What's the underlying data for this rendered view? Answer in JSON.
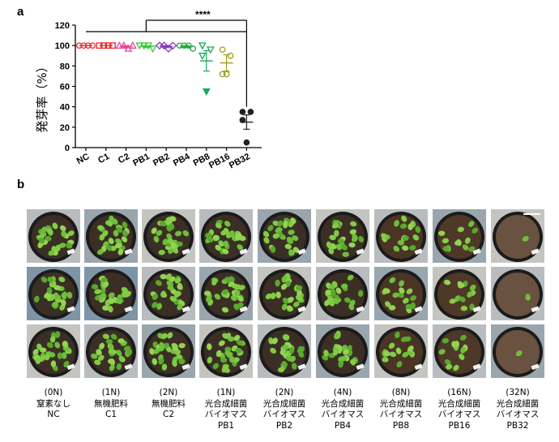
{
  "panel_a_label": "a",
  "panel_b_label": "b",
  "chart_data": {
    "type": "scatter",
    "ylabel": "発芽率（%）",
    "ylim": [
      0,
      120
    ],
    "yticks": [
      0,
      20,
      40,
      60,
      80,
      100,
      120
    ],
    "categories": [
      "NC",
      "C1",
      "C2",
      "PB1",
      "PB2",
      "PB4",
      "PB8",
      "PB16",
      "PB32"
    ],
    "colors": [
      "#e8272a",
      "#e8272a",
      "#e6449a",
      "#3cc83c",
      "#8a3ab5",
      "#23a23c",
      "#1aa85b",
      "#a09a1c",
      "#222222"
    ],
    "markers": [
      "circle",
      "square",
      "triangle",
      "triangle-down",
      "diamond",
      "circle",
      "triangle-down",
      "circle",
      "circle"
    ],
    "points": [
      [
        100,
        100,
        100,
        100
      ],
      [
        100,
        100,
        100,
        100
      ],
      [
        100,
        100,
        97,
        100
      ],
      [
        100,
        100,
        100,
        97
      ],
      [
        100,
        100,
        97,
        100
      ],
      [
        100,
        100,
        100,
        97
      ],
      [
        100,
        96,
        90,
        55
      ],
      [
        96,
        90,
        72,
        72
      ],
      [
        35,
        35,
        27,
        5
      ]
    ],
    "means": [
      100,
      100,
      99,
      99,
      99,
      99,
      85,
      83,
      25
    ],
    "errors": [
      0,
      0,
      1,
      1,
      1,
      1,
      10,
      8,
      7
    ],
    "significance": "****",
    "significance_from": "PB1",
    "significance_to": "PB32"
  },
  "photos": [
    {
      "n": "(0N)",
      "line1": "窒素なし",
      "line2": "",
      "code": "NC",
      "density": 1.0,
      "soil": "#3b2f25"
    },
    {
      "n": "(1N)",
      "line1": "無機肥料",
      "line2": "",
      "code": "C1",
      "density": 1.0,
      "soil": "#3b2f25"
    },
    {
      "n": "(2N)",
      "line1": "無機肥料",
      "line2": "",
      "code": "C2",
      "density": 1.0,
      "soil": "#3b2f25"
    },
    {
      "n": "(1N)",
      "line1": "光合成細菌",
      "line2": "バイオマス",
      "code": "PB1",
      "density": 1.0,
      "soil": "#3b2f25"
    },
    {
      "n": "(2N)",
      "line1": "光合成細菌",
      "line2": "バイオマス",
      "code": "PB2",
      "density": 0.95,
      "soil": "#3b2f25"
    },
    {
      "n": "(4N)",
      "line1": "光合成細菌",
      "line2": "バイオマス",
      "code": "PB4",
      "density": 0.9,
      "soil": "#3b2f25"
    },
    {
      "n": "(8N)",
      "line1": "光合成細菌",
      "line2": "バイオマス",
      "code": "PB8",
      "density": 0.6,
      "soil": "#4a3525"
    },
    {
      "n": "(16N)",
      "line1": "光合成細菌",
      "line2": "バイオマス",
      "code": "PB16",
      "density": 0.45,
      "soil": "#4e3828"
    },
    {
      "n": "(32N)",
      "line1": "光合成細菌",
      "line2": "バイオマス",
      "code": "PB32",
      "density": 0.04,
      "soil": "#6a5240"
    }
  ]
}
